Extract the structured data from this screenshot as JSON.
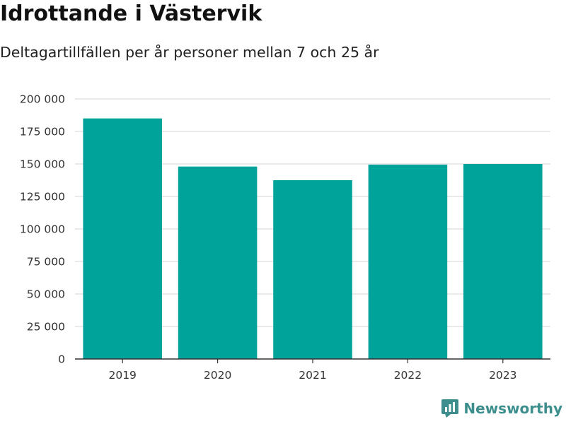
{
  "title": "Idrottande i Västervik",
  "subtitle": "Deltagartillfällen per år personer mellan 7 och 25 år",
  "brand": {
    "name": "Newsworthy",
    "icon": "newsworthy-logo-icon",
    "color": "#3c8f8c"
  },
  "colors": {
    "bar": "#00a39a",
    "grid": "#dddddd",
    "axis": "#333333"
  },
  "chart_data": {
    "type": "bar",
    "title": "Idrottande i Västervik",
    "subtitle": "Deltagartillfällen per år personer mellan 7 och 25 år",
    "categories": [
      "2019",
      "2020",
      "2021",
      "2022",
      "2023"
    ],
    "values": [
      185000,
      148000,
      137500,
      149500,
      150000
    ],
    "ylim": [
      0,
      200000
    ],
    "yticks": [
      0,
      25000,
      50000,
      75000,
      100000,
      125000,
      150000,
      175000,
      200000
    ],
    "ytick_labels": [
      "0",
      "25 000",
      "50 000",
      "75 000",
      "100 000",
      "125 000",
      "150 000",
      "175 000",
      "200 000"
    ],
    "xlabel": "",
    "ylabel": "",
    "grid": true,
    "legend": "none"
  }
}
